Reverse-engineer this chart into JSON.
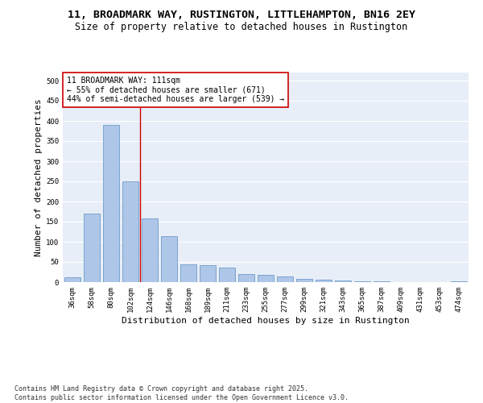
{
  "title_line1": "11, BROADMARK WAY, RUSTINGTON, LITTLEHAMPTON, BN16 2EY",
  "title_line2": "Size of property relative to detached houses in Rustington",
  "xlabel": "Distribution of detached houses by size in Rustington",
  "ylabel": "Number of detached properties",
  "categories": [
    "36sqm",
    "58sqm",
    "80sqm",
    "102sqm",
    "124sqm",
    "146sqm",
    "168sqm",
    "189sqm",
    "211sqm",
    "233sqm",
    "255sqm",
    "277sqm",
    "299sqm",
    "321sqm",
    "343sqm",
    "365sqm",
    "387sqm",
    "409sqm",
    "431sqm",
    "453sqm",
    "474sqm"
  ],
  "values": [
    13,
    170,
    390,
    250,
    158,
    115,
    44,
    43,
    37,
    20,
    18,
    15,
    9,
    7,
    5,
    3,
    2,
    0,
    0,
    0,
    2
  ],
  "bar_color": "#aec6e8",
  "bar_edge_color": "#5a8fc2",
  "background_color": "#e8eef8",
  "grid_color": "#ffffff",
  "vline_x": 3.5,
  "vline_color": "#cc0000",
  "annotation_text": "11 BROADMARK WAY: 111sqm\n← 55% of detached houses are smaller (671)\n44% of semi-detached houses are larger (539) →",
  "annotation_box_color": "#ffffff",
  "annotation_box_edge_color": "#cc0000",
  "ylim": [
    0,
    520
  ],
  "yticks": [
    0,
    50,
    100,
    150,
    200,
    250,
    300,
    350,
    400,
    450,
    500
  ],
  "footer": "Contains HM Land Registry data © Crown copyright and database right 2025.\nContains public sector information licensed under the Open Government Licence v3.0.",
  "title_fontsize": 9.5,
  "subtitle_fontsize": 8.5,
  "axis_label_fontsize": 8,
  "tick_fontsize": 6.5,
  "annotation_fontsize": 7,
  "footer_fontsize": 6
}
